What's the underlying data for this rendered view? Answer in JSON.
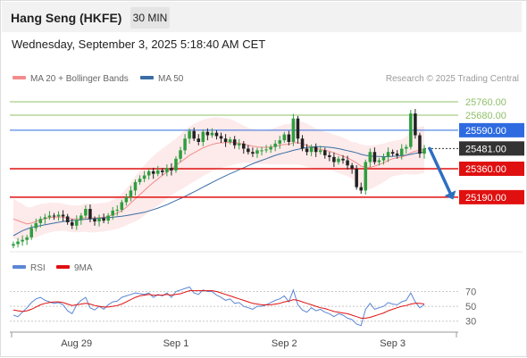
{
  "header": {
    "title": "Hang Seng (HKFE)",
    "interval": "30 MIN",
    "datetime": "Wednesday, September 3, 2025 5:18:40 AM CET"
  },
  "colors": {
    "bollinger": "#f28c8c",
    "ma50": "#3a6ea5",
    "resistance": "#8fc06a",
    "pivot": "#2f6be0",
    "support": "#e01010",
    "last": "#333333",
    "rsi": "#5b86d6",
    "rsi_ma": "#e01010",
    "candle": "#2e9e3e",
    "arrow": "#2c6fc0"
  },
  "chart_data": [
    {
      "type": "candlestick",
      "legend": [
        {
          "label": "MA 20 + Bollinger Bands",
          "color": "#f28c8c"
        },
        {
          "label": "MA 50",
          "color": "#3a6ea5"
        }
      ],
      "credit": "Research © 2025 Trading Central",
      "ylim": [
        24880,
        25840
      ],
      "x_ticks": [
        {
          "label": "Aug 29",
          "at": 12
        },
        {
          "label": "Sep 1",
          "at": 36
        },
        {
          "label": "Sep 2",
          "at": 60
        },
        {
          "label": "Sep 3",
          "at": 84
        }
      ],
      "levels": [
        {
          "label": "25760.00",
          "value": 25760,
          "kind": "resistance"
        },
        {
          "label": "25680.00",
          "value": 25680,
          "kind": "resistance"
        },
        {
          "label": "25590.00",
          "value": 25590,
          "kind": "pivot"
        },
        {
          "label": "25481.00",
          "value": 25481,
          "kind": "last"
        },
        {
          "label": "25360.00",
          "value": 25360,
          "kind": "support"
        },
        {
          "label": "25190.00",
          "value": 25190,
          "kind": "support"
        }
      ],
      "series": [
        {
          "name": "Price",
          "close": [
            24910,
            24925,
            24935,
            24950,
            25005,
            25035,
            25060,
            25070,
            25080,
            25075,
            25085,
            25075,
            25040,
            25020,
            25055,
            25080,
            25120,
            25060,
            25045,
            25065,
            25050,
            25080,
            25110,
            25115,
            25160,
            25190,
            25230,
            25280,
            25300,
            25320,
            25345,
            25330,
            25350,
            25340,
            25365,
            25350,
            25420,
            25470,
            25540,
            25585,
            25540,
            25520,
            25580,
            25560,
            25575,
            25555,
            25540,
            25520,
            25535,
            25500,
            25510,
            25480,
            25460,
            25450,
            25470,
            25470,
            25475,
            25490,
            25510,
            25530,
            25565,
            25520,
            25660,
            25540,
            25480,
            25460,
            25490,
            25460,
            25470,
            25440,
            25430,
            25400,
            25420,
            25410,
            25380,
            25360,
            25250,
            25230,
            25400,
            25460,
            25400,
            25410,
            25430,
            25460,
            25450,
            25440,
            25480,
            25490,
            25690,
            25560,
            25450,
            25481
          ],
          "ma20": [
            25060,
            25050,
            25040,
            25030,
            25035,
            25045,
            25055,
            25062,
            25068,
            25070,
            25072,
            25070,
            25065,
            25060,
            25060,
            25062,
            25068,
            25065,
            25065,
            25068,
            25070,
            25075,
            25085,
            25095,
            25110,
            25130,
            25155,
            25180,
            25205,
            25230,
            25255,
            25278,
            25300,
            25320,
            25340,
            25360,
            25380,
            25400,
            25420,
            25440,
            25455,
            25470,
            25485,
            25495,
            25505,
            25512,
            25515,
            25516,
            25518,
            25516,
            25512,
            25508,
            25500,
            25495,
            25490,
            25488,
            25488,
            25490,
            25495,
            25500,
            25505,
            25505,
            25515,
            25515,
            25510,
            25500,
            25490,
            25480,
            25475,
            25470,
            25465,
            25455,
            25445,
            25435,
            25425,
            25410,
            25395,
            25375,
            25370,
            25368,
            25375,
            25385,
            25395,
            25410,
            25420,
            25425,
            25430,
            25440,
            25455,
            25465,
            25470,
            25475
          ],
          "ma50": [
            24960,
            24975,
            24990,
            25000,
            25010,
            25015,
            25020,
            25025,
            25030,
            25035,
            25040,
            25045,
            25048,
            25050,
            25052,
            25055,
            25058,
            25060,
            25062,
            25064,
            25066,
            25068,
            25070,
            25073,
            25076,
            25080,
            25085,
            25090,
            25095,
            25100,
            25108,
            25116,
            25125,
            25135,
            25145,
            25158,
            25170,
            25182,
            25195,
            25208,
            25222,
            25236,
            25250,
            25264,
            25278,
            25292,
            25305,
            25318,
            25330,
            25342,
            25354,
            25366,
            25378,
            25390,
            25400,
            25410,
            25420,
            25430,
            25440,
            25448,
            25455,
            25462,
            25470,
            25476,
            25482,
            25486,
            25490,
            25492,
            25492,
            25490,
            25488,
            25485,
            25480,
            25474,
            25468,
            25462,
            25455,
            25446,
            25440,
            25436,
            25434,
            25433,
            25432,
            25432,
            25434,
            25436,
            25438,
            25441,
            25446,
            25452,
            25456,
            25460
          ],
          "bb_width": [
            120,
            115,
            110,
            100,
            95,
            95,
            95,
            90,
            90,
            85,
            85,
            80,
            80,
            80,
            80,
            80,
            85,
            85,
            85,
            85,
            85,
            85,
            90,
            95,
            100,
            110,
            120,
            135,
            145,
            150,
            155,
            158,
            160,
            160,
            160,
            160,
            160,
            165,
            170,
            172,
            172,
            170,
            168,
            165,
            160,
            155,
            150,
            145,
            140,
            130,
            120,
            110,
            105,
            100,
            100,
            100,
            100,
            105,
            110,
            115,
            120,
            120,
            130,
            130,
            130,
            130,
            125,
            120,
            115,
            110,
            110,
            110,
            110,
            110,
            110,
            110,
            120,
            130,
            130,
            130,
            125,
            120,
            115,
            110,
            105,
            105,
            105,
            110,
            130,
            140,
            140,
            140
          ]
        }
      ]
    },
    {
      "type": "line",
      "legend": [
        {
          "label": "RSI",
          "color": "#5b86d6"
        },
        {
          "label": "9MA",
          "color": "#e01010"
        }
      ],
      "ylim": [
        20,
        85
      ],
      "y_ticks": [
        70,
        50,
        30
      ],
      "series": [
        {
          "name": "RSI",
          "values": [
            38,
            36,
            42,
            48,
            55,
            60,
            62,
            58,
            56,
            54,
            55,
            52,
            44,
            40,
            52,
            58,
            62,
            48,
            45,
            50,
            46,
            52,
            56,
            57,
            62,
            64,
            66,
            68,
            67,
            66,
            68,
            62,
            66,
            64,
            68,
            62,
            70,
            72,
            74,
            76,
            68,
            66,
            72,
            70,
            70,
            65,
            62,
            58,
            60,
            54,
            55,
            50,
            48,
            46,
            50,
            50,
            52,
            55,
            58,
            60,
            64,
            56,
            72,
            52,
            45,
            42,
            48,
            44,
            46,
            42,
            40,
            36,
            40,
            38,
            34,
            32,
            26,
            24,
            46,
            54,
            46,
            48,
            50,
            55,
            53,
            52,
            56,
            58,
            68,
            56,
            48,
            52
          ]
        },
        {
          "name": "9MA",
          "values": [
            45,
            44,
            43,
            44,
            46,
            49,
            52,
            54,
            55,
            56,
            56,
            55,
            53,
            51,
            52,
            53,
            54,
            53,
            51,
            50,
            49,
            49,
            50,
            51,
            53,
            56,
            59,
            62,
            64,
            65,
            66,
            65,
            65,
            65,
            66,
            65,
            66,
            67,
            69,
            71,
            71,
            71,
            71,
            71,
            71,
            70,
            68,
            66,
            64,
            62,
            60,
            58,
            56,
            54,
            53,
            52,
            52,
            52,
            53,
            54,
            56,
            57,
            59,
            58,
            56,
            54,
            52,
            50,
            48,
            47,
            45,
            43,
            42,
            41,
            40,
            38,
            36,
            34,
            34,
            35,
            37,
            39,
            41,
            44,
            46,
            48,
            50,
            51,
            53,
            54,
            54,
            53
          ]
        }
      ]
    }
  ]
}
